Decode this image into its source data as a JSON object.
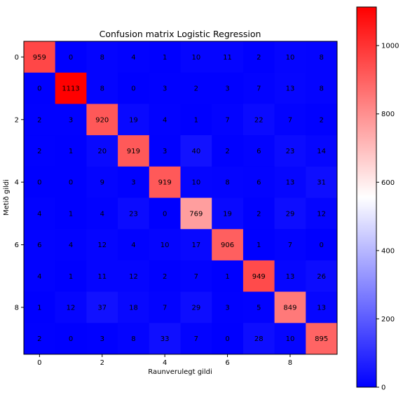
{
  "chart_data": {
    "type": "heatmap",
    "title": "Confusion matrix Logistic Regression",
    "xlabel": "Raunverulegt gildi",
    "ylabel": "Metið gildi",
    "x_ticks": [
      0,
      2,
      4,
      6,
      8
    ],
    "y_ticks": [
      0,
      2,
      4,
      6,
      8
    ],
    "matrix": [
      [
        959,
        0,
        8,
        4,
        1,
        10,
        11,
        2,
        10,
        8
      ],
      [
        0,
        1113,
        8,
        0,
        3,
        2,
        3,
        7,
        13,
        8
      ],
      [
        2,
        3,
        920,
        19,
        4,
        1,
        7,
        22,
        7,
        2
      ],
      [
        2,
        1,
        20,
        919,
        3,
        40,
        2,
        6,
        23,
        14
      ],
      [
        0,
        0,
        9,
        3,
        919,
        10,
        8,
        6,
        13,
        31
      ],
      [
        4,
        1,
        4,
        23,
        0,
        769,
        19,
        2,
        29,
        12
      ],
      [
        6,
        4,
        12,
        4,
        10,
        17,
        906,
        1,
        7,
        0
      ],
      [
        4,
        1,
        11,
        12,
        2,
        7,
        1,
        949,
        13,
        26
      ],
      [
        1,
        12,
        37,
        18,
        7,
        29,
        3,
        5,
        849,
        13
      ],
      [
        2,
        0,
        3,
        8,
        33,
        7,
        0,
        28,
        10,
        895
      ]
    ],
    "colormap": {
      "name": "bwr",
      "low": "#0000ff",
      "mid": "#ffffff",
      "high": "#ff0000"
    },
    "value_range": [
      0,
      1113
    ],
    "colorbar_ticks": [
      0,
      200,
      400,
      600,
      800,
      1000
    ]
  }
}
